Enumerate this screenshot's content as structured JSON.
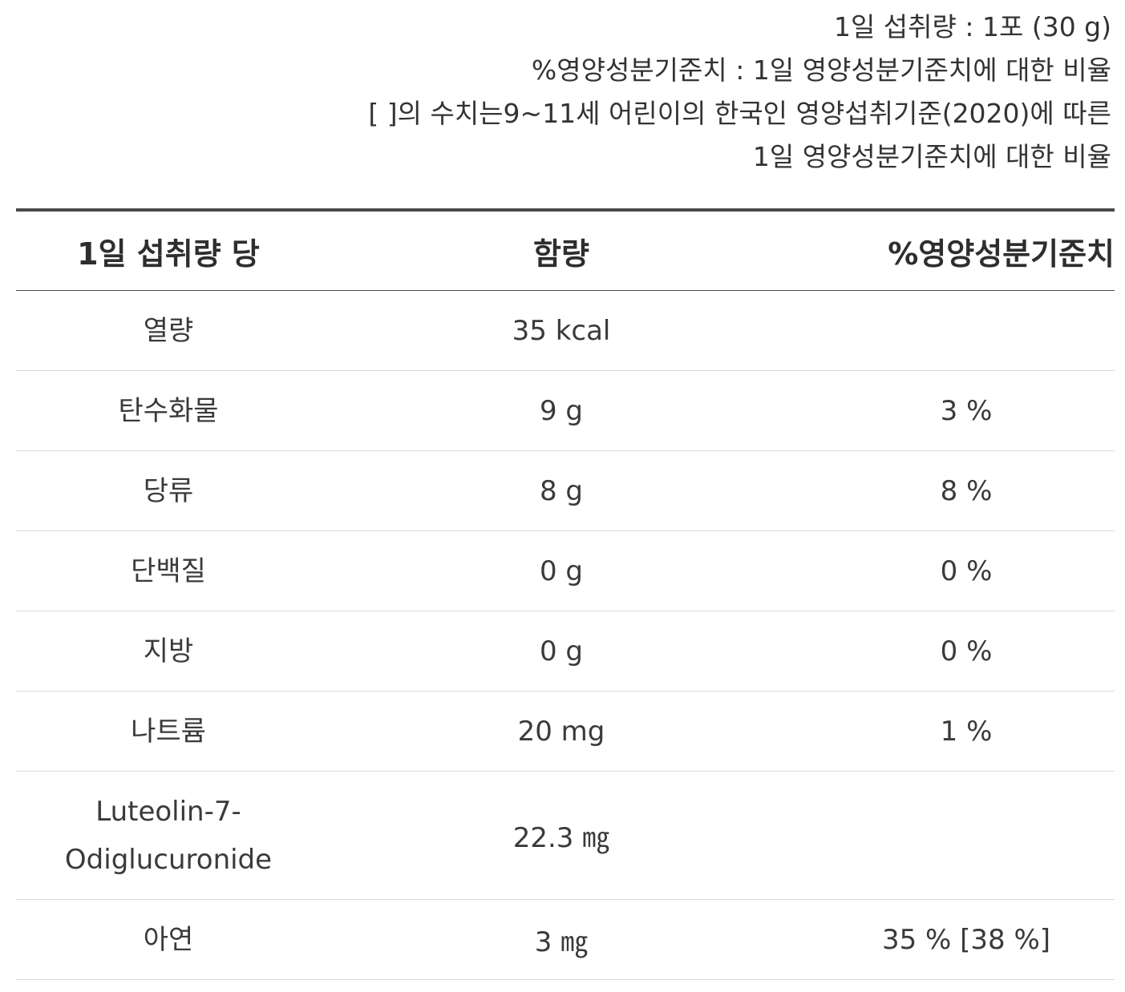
{
  "notes": [
    "1일 섭취량 : 1포 (30 g)",
    "%영양성분기준치 : 1일 영양성분기준치에 대한 비율",
    "[ ]의 수치는9~11세 어린이의 한국인 영양섭취기준(2020)에 따른",
    "1일 영양성분기준치에 대한 비율"
  ],
  "table": {
    "headers": {
      "name": "1일 섭취량 당",
      "amount": "함량",
      "daily_value": "%영양성분기준치"
    },
    "rows": [
      {
        "name": "열량",
        "amount": "35 kcal",
        "daily_value": ""
      },
      {
        "name": "탄수화물",
        "amount": "9 g",
        "daily_value": "3 %"
      },
      {
        "name": "당류",
        "amount": "8 g",
        "daily_value": "8 %"
      },
      {
        "name": "단백질",
        "amount": "0 g",
        "daily_value": "0 %"
      },
      {
        "name": "지방",
        "amount": "0 g",
        "daily_value": "0 %"
      },
      {
        "name": "나트륨",
        "amount": "20 mg",
        "daily_value": "1 %"
      },
      {
        "name": "Luteolin-7-Odiglucuronide",
        "name_line1": "Luteolin-7-",
        "name_line2": "Odiglucuronide",
        "amount": "22.3 ㎎",
        "daily_value": ""
      },
      {
        "name": "아연",
        "amount": "3 ㎎",
        "daily_value": "35 % [38 %]"
      }
    ]
  }
}
